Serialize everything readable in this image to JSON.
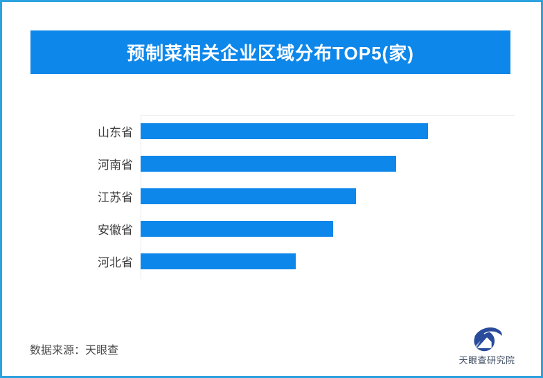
{
  "page": {
    "background": "#FFFFFF",
    "border_color": "#2CA2DF"
  },
  "banner": {
    "title": "预制菜相关企业区域分布TOP5(家)",
    "background": "#0E87EA",
    "text_color": "#FFFFFF"
  },
  "chart_data": {
    "type": "bar",
    "orientation": "horizontal",
    "title": "预制菜相关企业区域分布TOP5(家)",
    "unit": "家",
    "categories": [
      "山东省",
      "河南省",
      "江苏省",
      "安徽省",
      "河北省"
    ],
    "values_relative": [
      100,
      89,
      75,
      67,
      54
    ],
    "value_labels_shown": false,
    "bar_color": "#0E87EA",
    "axis_line_color": "#E4E8EF",
    "grid": "off",
    "legend": "none"
  },
  "footer": {
    "source": "数据来源：天眼查",
    "logo_text": "天眼查研究院",
    "logo_color": "#2A4B9B"
  }
}
